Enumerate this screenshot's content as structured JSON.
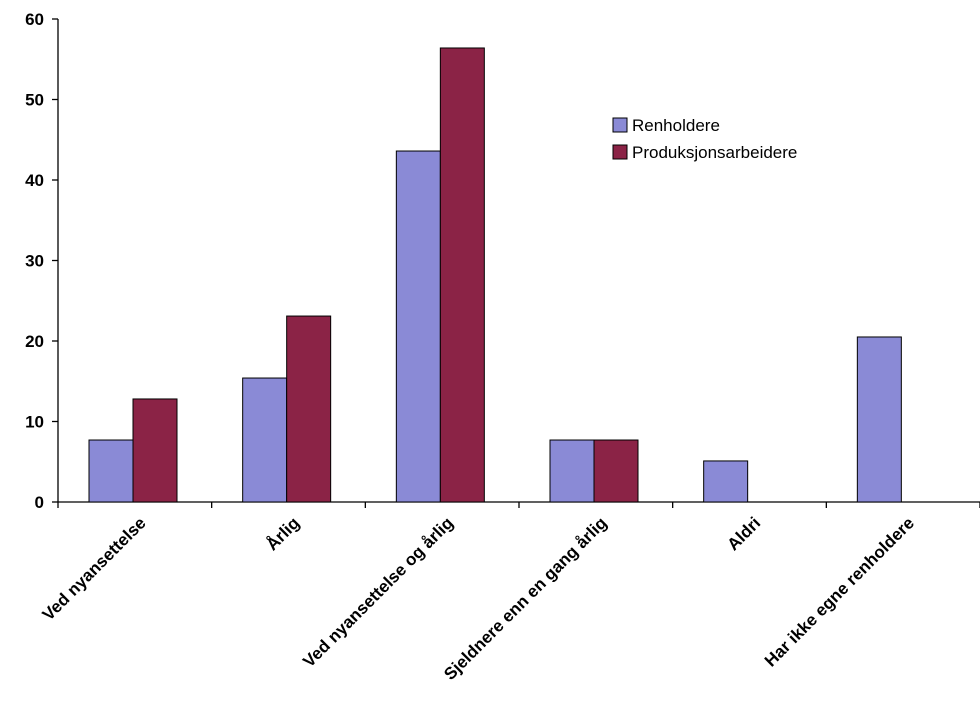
{
  "chart_data": {
    "type": "bar",
    "categories": [
      "Ved nyansettelse",
      "Årlig",
      "Ved nyansettelse og årlig",
      "Sjeldnere enn en gang årlig",
      "Aldri",
      "Har ikke egne renholdere"
    ],
    "series": [
      {
        "name": "Renholdere",
        "values": [
          7.7,
          15.4,
          43.6,
          7.7,
          5.1,
          20.5
        ],
        "color": "#8a8ad6"
      },
      {
        "name": "Produksjonsarbeidere",
        "values": [
          12.8,
          23.1,
          56.4,
          7.7,
          null,
          null
        ],
        "color": "#8b2346"
      }
    ],
    "yticks": [
      0,
      10,
      20,
      30,
      40,
      50,
      60
    ],
    "ylim": [
      0,
      60
    ],
    "title": "",
    "xlabel": "",
    "ylabel": "",
    "legend_position": "right",
    "grid": false
  }
}
